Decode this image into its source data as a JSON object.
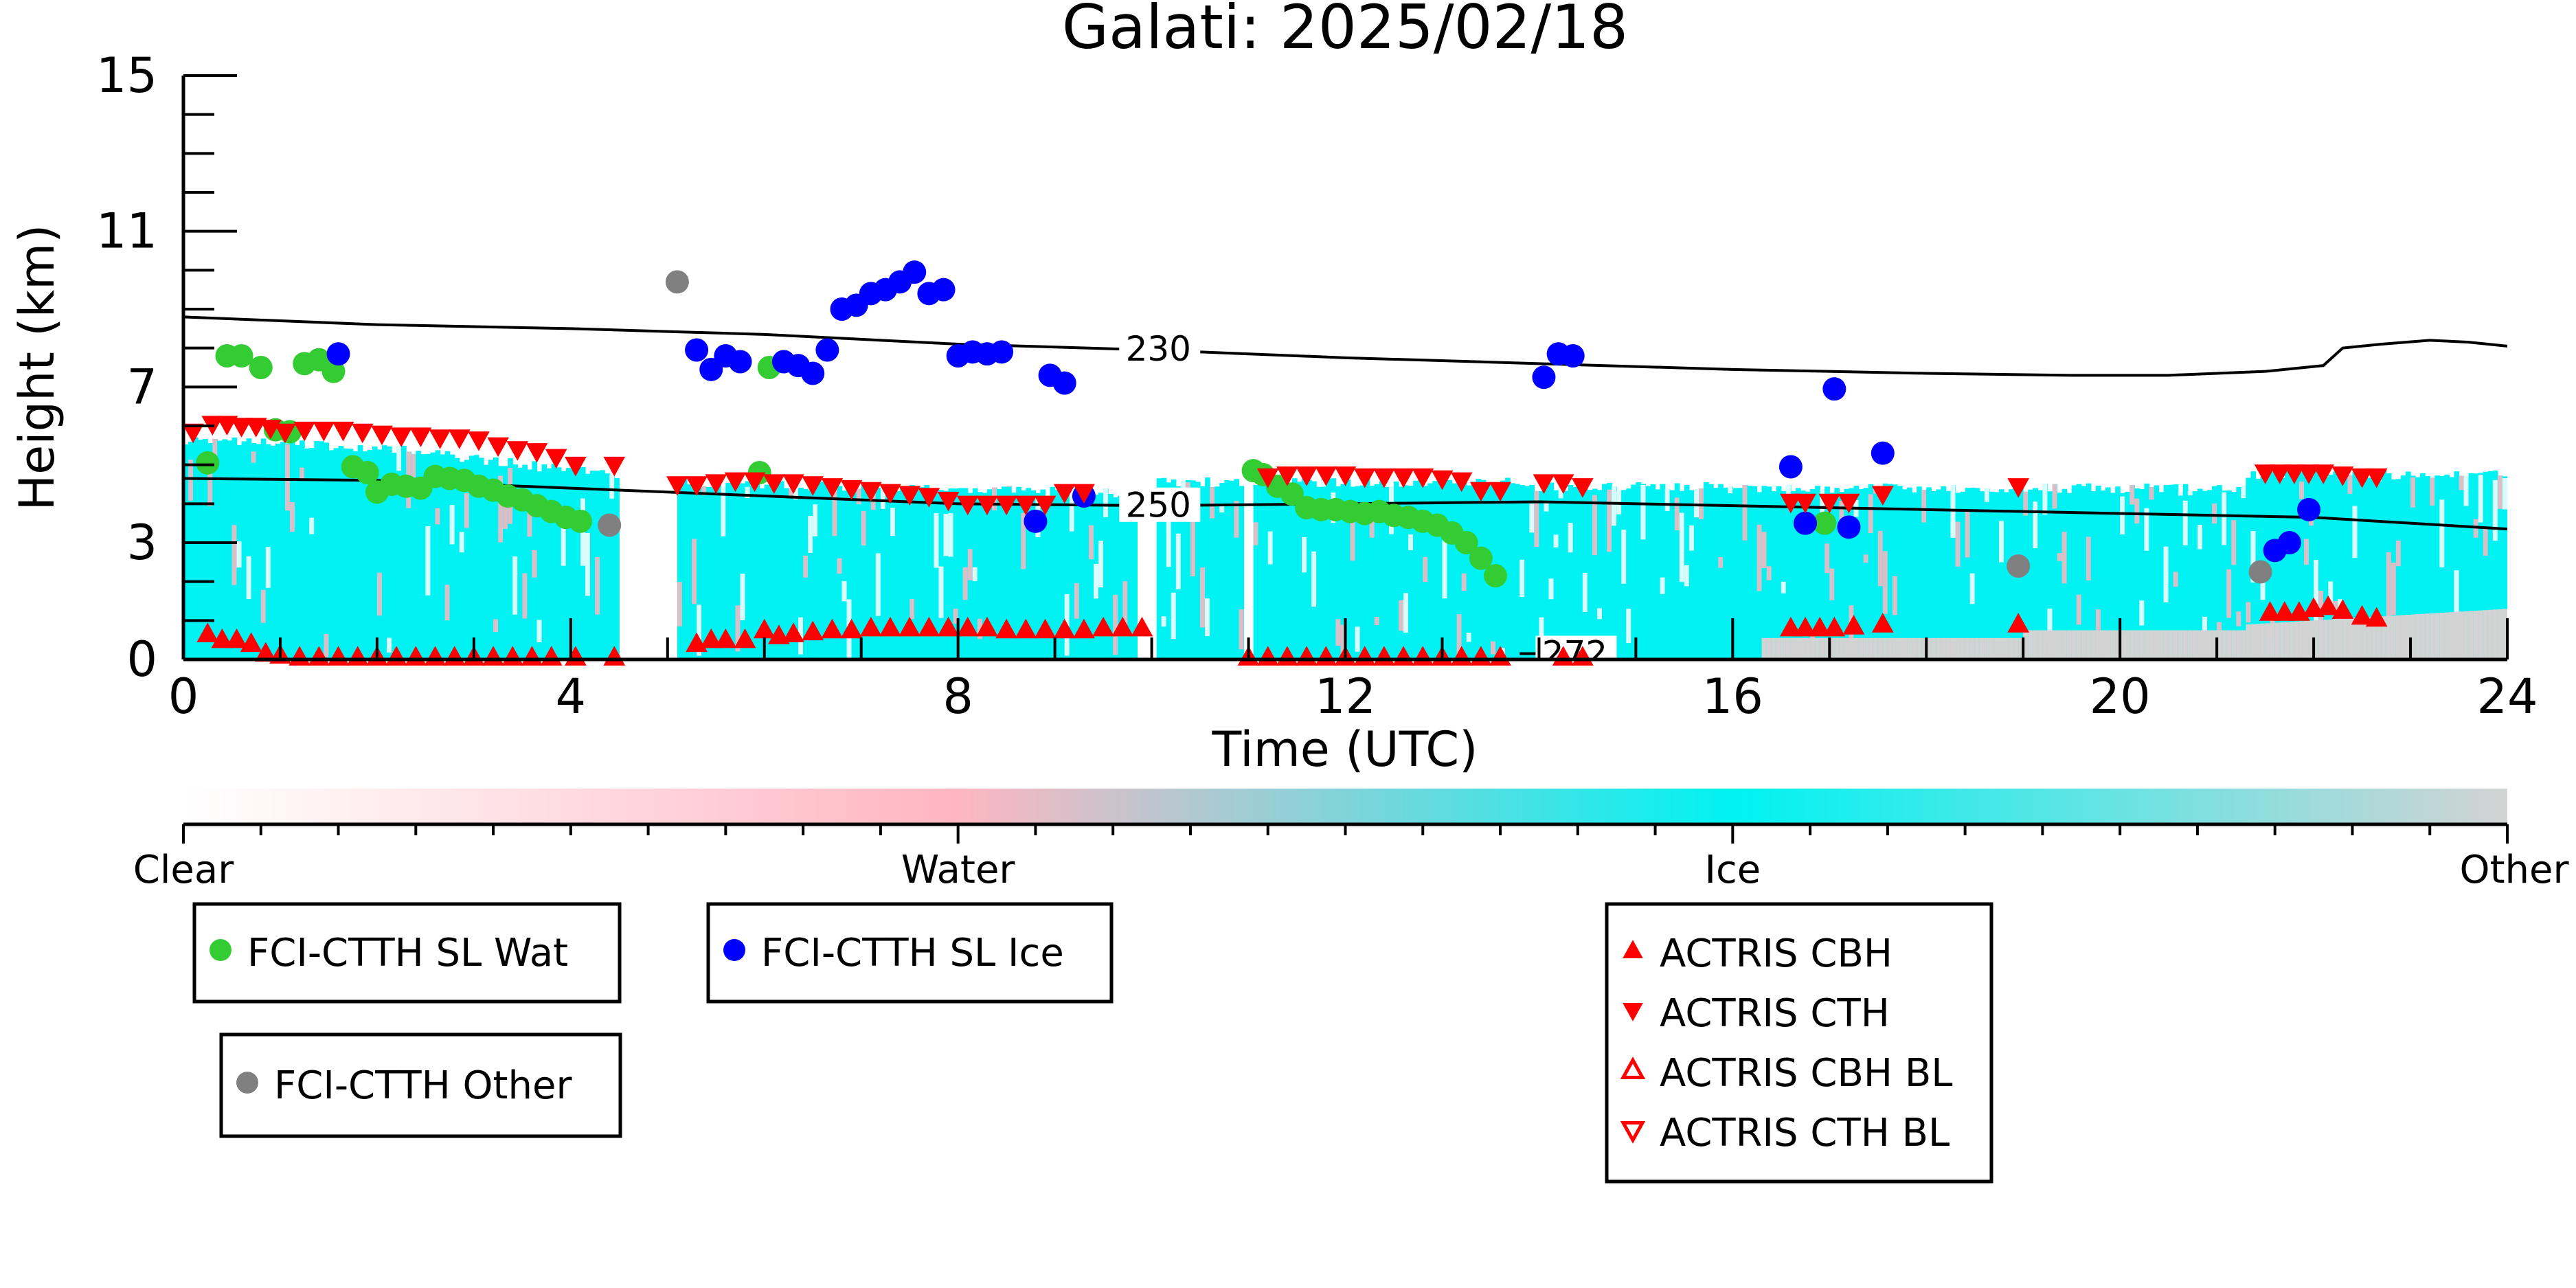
{
  "chart_data": {
    "type": "scatter",
    "title": "Galati: 2025/02/18",
    "xlabel": "Time (UTC)",
    "ylabel": "Height (km)",
    "xlim": [
      0,
      24
    ],
    "ylim": [
      0,
      15
    ],
    "x_ticks": [
      0,
      4,
      8,
      12,
      16,
      20,
      24
    ],
    "y_ticks": [
      0,
      3,
      7,
      11,
      15
    ],
    "colorbar": {
      "labels": [
        "Clear",
        "Water",
        "Ice",
        "Other"
      ],
      "colors": [
        "#ffffff",
        "#ffb6c1",
        "#00f2f2",
        "#d3d3d3"
      ]
    },
    "contours": [
      {
        "label": "230",
        "label_x": 9.7,
        "x": [
          0,
          2,
          4,
          6,
          8,
          10,
          12,
          14,
          16,
          18,
          19.5,
          20.5,
          21.5,
          22.1,
          22.3,
          22.7,
          23.2,
          23.6,
          24
        ],
        "y": [
          8.8,
          8.6,
          8.5,
          8.35,
          8.1,
          7.95,
          7.75,
          7.6,
          7.45,
          7.35,
          7.3,
          7.3,
          7.4,
          7.55,
          8.0,
          8.1,
          8.2,
          8.15,
          8.05
        ]
      },
      {
        "label": "250",
        "label_x": 9.7,
        "x": [
          0,
          2,
          4,
          6,
          8,
          10,
          12,
          14,
          16,
          18,
          20,
          22,
          24
        ],
        "y": [
          4.65,
          4.6,
          4.4,
          4.2,
          4.0,
          3.95,
          4.0,
          4.05,
          3.95,
          3.85,
          3.75,
          3.65,
          3.35
        ]
      },
      {
        "label": "272",
        "label_x": 14.0,
        "x": [
          13.8,
          14.6
        ],
        "y": [
          0.15,
          0.15
        ]
      }
    ],
    "series": [
      {
        "name": "FCI-CTTH SL Wat",
        "marker": "circle",
        "color": "#33cc33",
        "x": [
          0.25,
          0.45,
          0.6,
          0.8,
          0.95,
          1.1,
          1.25,
          1.4,
          1.55,
          1.75,
          1.9,
          2.0,
          2.15,
          2.3,
          2.45,
          2.6,
          2.75,
          2.9,
          3.05,
          3.2,
          3.35,
          3.5,
          3.65,
          3.8,
          3.95,
          4.1,
          5.95,
          6.05,
          11.05,
          11.15,
          11.3,
          11.45,
          11.6,
          11.75,
          11.9,
          12.05,
          12.2,
          12.35,
          12.5,
          12.65,
          12.8,
          12.95,
          13.1,
          13.25,
          13.4,
          13.55,
          16.95
        ],
        "y": [
          5.05,
          7.8,
          7.8,
          7.5,
          5.9,
          5.85,
          7.6,
          7.7,
          7.4,
          4.95,
          4.8,
          4.3,
          4.5,
          4.45,
          4.4,
          4.7,
          4.65,
          4.6,
          4.45,
          4.35,
          4.2,
          4.1,
          3.95,
          3.8,
          3.65,
          3.55,
          4.8,
          7.5,
          4.85,
          4.75,
          4.45,
          4.25,
          3.9,
          3.85,
          3.85,
          3.8,
          3.75,
          3.8,
          3.7,
          3.65,
          3.55,
          3.45,
          3.25,
          3.0,
          2.6,
          2.15,
          3.5
        ]
      },
      {
        "name": "FCI-CTTH SL Ice",
        "marker": "circle",
        "color": "#0000ff",
        "x": [
          1.6,
          5.3,
          5.45,
          5.6,
          5.75,
          6.2,
          6.35,
          6.5,
          6.65,
          6.8,
          6.95,
          7.1,
          7.25,
          7.4,
          7.55,
          7.7,
          7.85,
          8.0,
          8.15,
          8.3,
          8.45,
          8.8,
          8.95,
          9.1,
          9.3,
          14.05,
          14.2,
          14.35,
          16.6,
          16.75,
          17.05,
          17.2,
          17.55,
          21.6,
          21.75,
          21.95
        ],
        "y": [
          7.85,
          7.95,
          7.45,
          7.8,
          7.65,
          7.65,
          7.55,
          7.35,
          7.95,
          9.0,
          9.1,
          9.4,
          9.5,
          9.7,
          9.95,
          9.4,
          9.5,
          7.8,
          7.9,
          7.85,
          7.9,
          3.55,
          7.3,
          7.1,
          4.2,
          7.25,
          7.85,
          7.8,
          4.95,
          3.5,
          6.95,
          3.4,
          5.3,
          2.8,
          3.0,
          3.85
        ]
      },
      {
        "name": "FCI-CTTH Other",
        "marker": "circle",
        "color": "#808080",
        "x": [
          4.4,
          5.1,
          18.95,
          21.45
        ],
        "y": [
          3.45,
          9.7,
          2.4,
          2.25
        ]
      },
      {
        "name": "ACTRIS CBH",
        "marker": "triangle-up",
        "color": "#ff0000",
        "x": [
          0.25,
          0.4,
          0.55,
          0.7,
          0.85,
          1.0,
          1.2,
          1.4,
          1.6,
          1.8,
          2.0,
          2.2,
          2.4,
          2.6,
          2.8,
          3.0,
          3.2,
          3.4,
          3.6,
          3.8,
          4.05,
          4.45,
          5.3,
          5.45,
          5.6,
          5.8,
          6.0,
          6.15,
          6.3,
          6.5,
          6.7,
          6.9,
          7.1,
          7.3,
          7.5,
          7.7,
          7.9,
          8.1,
          8.3,
          8.5,
          8.7,
          8.9,
          9.1,
          9.3,
          9.5,
          9.7,
          9.9,
          11.0,
          11.2,
          11.4,
          11.6,
          11.8,
          12.0,
          12.2,
          12.4,
          12.6,
          12.8,
          13.0,
          13.2,
          13.4,
          13.6,
          14.25,
          14.45,
          16.6,
          16.75,
          16.9,
          17.05,
          17.25,
          17.55,
          18.95,
          21.55,
          21.7,
          21.85,
          22.0,
          22.15,
          22.3,
          22.5,
          22.65
        ],
        "y": [
          0.65,
          0.5,
          0.5,
          0.4,
          0.15,
          0.1,
          0.05,
          0.05,
          0.05,
          0.05,
          0.05,
          0.05,
          0.05,
          0.05,
          0.05,
          0.05,
          0.05,
          0.05,
          0.05,
          0.05,
          0.05,
          0.05,
          0.4,
          0.5,
          0.5,
          0.5,
          0.75,
          0.6,
          0.65,
          0.7,
          0.75,
          0.75,
          0.8,
          0.8,
          0.8,
          0.8,
          0.8,
          0.8,
          0.8,
          0.75,
          0.75,
          0.75,
          0.75,
          0.75,
          0.8,
          0.8,
          0.8,
          0.05,
          0.05,
          0.05,
          0.05,
          0.05,
          0.05,
          0.05,
          0.05,
          0.05,
          0.05,
          0.05,
          0.05,
          0.05,
          0.05,
          0.05,
          0.05,
          0.8,
          0.8,
          0.8,
          0.8,
          0.85,
          0.9,
          0.9,
          1.2,
          1.2,
          1.2,
          1.3,
          1.35,
          1.25,
          1.1,
          1.05
        ]
      },
      {
        "name": "ACTRIS CTH",
        "marker": "triangle-down",
        "color": "#ff0000",
        "x": [
          0.1,
          0.3,
          0.45,
          0.6,
          0.75,
          0.9,
          1.05,
          1.25,
          1.45,
          1.65,
          1.85,
          2.05,
          2.25,
          2.45,
          2.65,
          2.85,
          3.05,
          3.25,
          3.45,
          3.65,
          3.85,
          4.05,
          4.45,
          5.1,
          5.3,
          5.5,
          5.7,
          5.9,
          6.1,
          6.3,
          6.5,
          6.7,
          6.9,
          7.1,
          7.3,
          7.5,
          7.7,
          7.9,
          8.1,
          8.3,
          8.5,
          8.7,
          8.9,
          9.1,
          9.3,
          11.2,
          11.4,
          11.6,
          11.8,
          12.0,
          12.2,
          12.4,
          12.6,
          12.8,
          13.0,
          13.2,
          13.4,
          13.6,
          14.05,
          14.25,
          14.45,
          16.6,
          16.75,
          17.0,
          17.2,
          17.55,
          18.95,
          21.5,
          21.65,
          21.8,
          21.95,
          22.1,
          22.3,
          22.5,
          22.65
        ],
        "y": [
          5.85,
          6.05,
          6.05,
          6.0,
          6.0,
          5.95,
          5.85,
          5.9,
          5.9,
          5.9,
          5.85,
          5.8,
          5.75,
          5.75,
          5.7,
          5.7,
          5.65,
          5.5,
          5.4,
          5.35,
          5.2,
          5.0,
          5.0,
          4.5,
          4.5,
          4.55,
          4.6,
          4.6,
          4.55,
          4.55,
          4.5,
          4.45,
          4.4,
          4.35,
          4.3,
          4.25,
          4.2,
          4.1,
          4.0,
          4.0,
          4.0,
          4.0,
          4.0,
          4.3,
          4.3,
          4.7,
          4.75,
          4.75,
          4.75,
          4.75,
          4.7,
          4.7,
          4.7,
          4.7,
          4.65,
          4.6,
          4.35,
          4.35,
          4.55,
          4.55,
          4.45,
          4.05,
          4.05,
          4.05,
          4.05,
          4.25,
          4.45,
          4.8,
          4.8,
          4.8,
          4.8,
          4.8,
          4.75,
          4.7,
          4.7
        ]
      },
      {
        "name": "ACTRIS CBH BL",
        "marker": "triangle-up-open",
        "color": "#ff0000",
        "x": [],
        "y": []
      },
      {
        "name": "ACTRIS CTH BL",
        "marker": "triangle-down-open",
        "color": "#ff0000",
        "x": [],
        "y": []
      }
    ],
    "legends": [
      {
        "name": "legend-fci-wat",
        "entries": [
          0
        ]
      },
      {
        "name": "legend-fci-ice",
        "entries": [
          1
        ]
      },
      {
        "name": "legend-fci-other",
        "entries": [
          2
        ]
      },
      {
        "name": "legend-actris",
        "entries": [
          3,
          4,
          5,
          6
        ]
      }
    ]
  }
}
